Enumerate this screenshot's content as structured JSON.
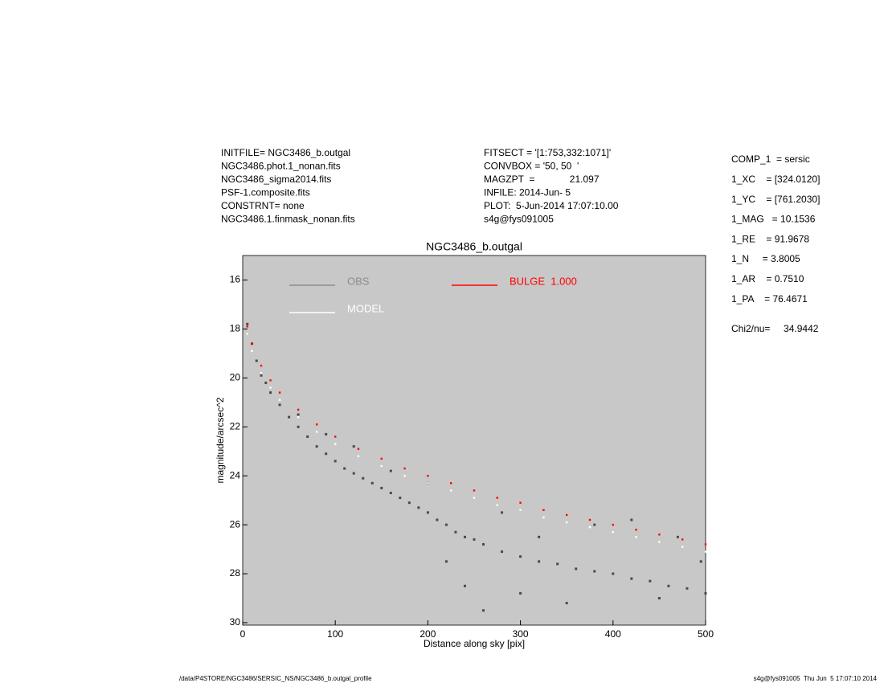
{
  "header": {
    "left": [
      "INITFILE= NGC3486_b.outgal",
      "NGC3486.phot.1_nonan.fits",
      "NGC3486_sigma2014.fits",
      "PSF-1.composite.fits",
      "CONSTRNT= none",
      "NGC3486.1.finmask_nonan.fits"
    ],
    "middle": [
      "FITSECT = '[1:753,332:1071]'",
      "CONVBOX = '50, 50  '",
      "MAGZPT  =             21.097",
      "INFILE: 2014-Jun- 5",
      "PLOT:  5-Jun-2014 17:07:10.00",
      "s4g@fys091005"
    ],
    "right": [
      "COMP_1  = sersic",
      "1_XC    = [324.0120]",
      "1_YC    = [761.2030]",
      "1_MAG   = 10.1536",
      "1_RE    = 91.9678",
      "1_N     = 3.8005",
      "1_AR    = 0.7510",
      "1_PA    = 76.4671"
    ],
    "chi2": "Chi2/nu=     34.9442"
  },
  "footer": {
    "left": "/data/P4STORE/NGC3486/SERSIC_NS/NGC3486_b.outgal_profile",
    "right": "s4g@fys091005  Thu Jun  5 17:07:10 2014"
  },
  "chart_data": {
    "type": "scatter",
    "title": "NGC3486_b.outgal",
    "x_label": "Distance along sky [pix]",
    "y_label": "magnitude/arcsec^2",
    "xlim": [
      0,
      500
    ],
    "xticks": [
      0,
      100,
      200,
      300,
      400,
      500
    ],
    "ylim": [
      30.1,
      15
    ],
    "yticks": [
      16,
      18,
      20,
      22,
      24,
      26,
      28,
      30
    ],
    "background": "#c8c8c8",
    "series": [
      {
        "name": "OBS",
        "color": "#4a4a4a",
        "legend_color": "#8c8c8c",
        "x": [
          5,
          10,
          15,
          20,
          25,
          30,
          40,
          50,
          60,
          70,
          80,
          90,
          100,
          110,
          120,
          130,
          140,
          150,
          160,
          170,
          180,
          190,
          200,
          210,
          220,
          230,
          240,
          250,
          260,
          280,
          300,
          320,
          340,
          360,
          380,
          400,
          420,
          440,
          460,
          480,
          500,
          60,
          90,
          120,
          160,
          200,
          220,
          240,
          260,
          280,
          300,
          320,
          350,
          380,
          420,
          450,
          470,
          495
        ],
        "values": [
          17.8,
          18.6,
          19.3,
          19.9,
          20.2,
          20.6,
          21.1,
          21.6,
          22.0,
          22.4,
          22.8,
          23.1,
          23.4,
          23.7,
          23.9,
          24.1,
          24.3,
          24.5,
          24.7,
          24.9,
          25.1,
          25.3,
          25.5,
          25.8,
          26.0,
          26.3,
          26.5,
          26.6,
          26.8,
          27.1,
          27.3,
          27.5,
          27.6,
          27.8,
          27.9,
          28.0,
          28.2,
          28.3,
          28.5,
          28.6,
          28.8,
          21.5,
          22.3,
          22.8,
          23.8,
          24.3,
          27.5,
          28.5,
          29.5,
          25.5,
          28.8,
          26.5,
          29.2,
          26.0,
          25.8,
          29.0,
          26.5,
          27.5
        ]
      },
      {
        "name": "MODEL",
        "color": "#ffffff",
        "legend_color": "#ffffff",
        "x": [
          5,
          10,
          20,
          30,
          40,
          60,
          80,
          100,
          125,
          150,
          175,
          200,
          225,
          250,
          275,
          300,
          325,
          350,
          375,
          400,
          425,
          450,
          475,
          500
        ],
        "values": [
          18.2,
          18.9,
          19.8,
          20.4,
          20.9,
          21.6,
          22.2,
          22.7,
          23.2,
          23.6,
          24.0,
          24.3,
          24.6,
          24.9,
          25.2,
          25.4,
          25.7,
          25.9,
          26.1,
          26.3,
          26.5,
          26.7,
          26.9,
          27.1
        ]
      },
      {
        "name": "BULGE  1.000",
        "color": "#ff0000",
        "legend_color": "#ff0000",
        "x": [
          5,
          10,
          20,
          30,
          40,
          60,
          80,
          100,
          125,
          150,
          175,
          200,
          225,
          250,
          275,
          300,
          325,
          350,
          375,
          400,
          425,
          450,
          475,
          500
        ],
        "values": [
          17.9,
          18.6,
          19.5,
          20.1,
          20.6,
          21.3,
          21.9,
          22.4,
          22.9,
          23.3,
          23.7,
          24.0,
          24.3,
          24.6,
          24.9,
          25.1,
          25.4,
          25.6,
          25.8,
          26.0,
          26.2,
          26.4,
          26.6,
          26.8
        ]
      }
    ]
  }
}
